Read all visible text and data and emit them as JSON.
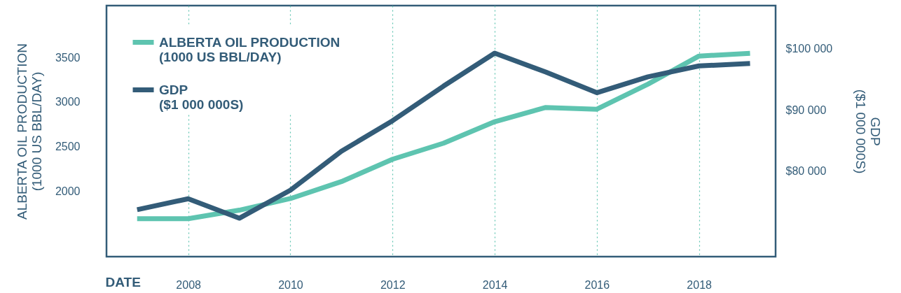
{
  "chart_data": {
    "type": "line",
    "xlabel": "DATE",
    "ylabel": "ALBERTA OIL PRODUCTION\n(1000 US BBL/DAY)",
    "y2label": "GDP\n($1 000 000S)",
    "x": [
      2007,
      2008,
      2009,
      2010,
      2011,
      2012,
      2013,
      2014,
      2015,
      2016,
      2017,
      2018,
      2019
    ],
    "xlim": [
      2006.4,
      2019.5
    ],
    "xticks": [
      2008,
      2010,
      2012,
      2014,
      2016,
      2018
    ],
    "ylim": [
      1270,
      4080
    ],
    "yticks": [
      2000,
      2500,
      3000,
      3500
    ],
    "y2lim": [
      65900,
      107100
    ],
    "y2ticks": [
      {
        "value": 80000,
        "label": "$80 000"
      },
      {
        "value": 90000,
        "label": "$90 000"
      },
      {
        "value": 100000,
        "label": "$100 000"
      }
    ],
    "series": [
      {
        "name": "ALBERTA OIL PRODUCTION\n(1000 US BBL/DAY)",
        "color": "#5ec4b0",
        "values": [
          1695,
          1695,
          1790,
          1920,
          2110,
          2360,
          2540,
          2780,
          2940,
          2920,
          3200,
          3515,
          3545
        ]
      },
      {
        "name": "GDP\n($1 000 000S)",
        "color": "#335c78",
        "axis": "y2",
        "values": [
          73600,
          75400,
          72200,
          76800,
          83200,
          88200,
          93900,
          99300,
          96200,
          92800,
          95400,
          97200,
          97600
        ]
      }
    ],
    "grid": "x",
    "legend": "top left",
    "line_style": "solid",
    "marker": "none"
  }
}
